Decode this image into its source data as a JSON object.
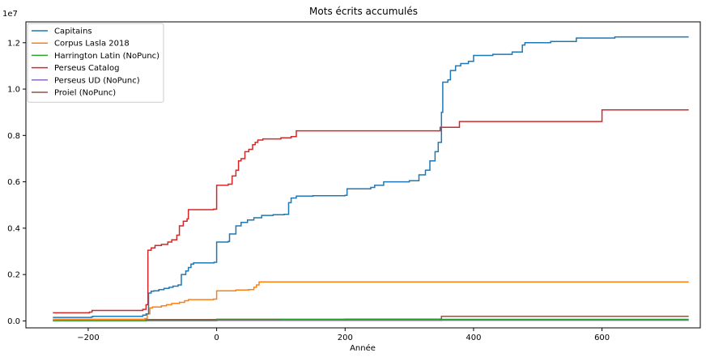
{
  "chart_data": {
    "type": "line",
    "step": true,
    "title": "Mots écrits accumulés",
    "xlabel": "Année",
    "ylabel": "",
    "y_offset_label": "1e7",
    "xlim": [
      -297,
      753
    ],
    "ylim": [
      -300000,
      12900000
    ],
    "x_ticks": [
      -200,
      0,
      200,
      400,
      600
    ],
    "x_tick_labels": [
      "−200",
      "0",
      "200",
      "400",
      "600"
    ],
    "y_ticks": [
      0,
      2000000,
      4000000,
      6000000,
      8000000,
      10000000,
      12000000
    ],
    "y_tick_labels": [
      "0.0",
      "0.2",
      "0.4",
      "0.6",
      "0.8",
      "1.0",
      "1.2"
    ],
    "legend_position": "top-left",
    "series": [
      {
        "name": "Capitains",
        "color": "#1f77b4",
        "points": [
          [
            -255,
            150000
          ],
          [
            -195,
            170000
          ],
          [
            -193,
            200000
          ],
          [
            -115,
            250000
          ],
          [
            -110,
            300000
          ],
          [
            -106,
            1200000
          ],
          [
            -102,
            1280000
          ],
          [
            -98,
            1300000
          ],
          [
            -90,
            1350000
          ],
          [
            -82,
            1400000
          ],
          [
            -74,
            1450000
          ],
          [
            -68,
            1500000
          ],
          [
            -60,
            1550000
          ],
          [
            -55,
            2000000
          ],
          [
            -48,
            2150000
          ],
          [
            -44,
            2300000
          ],
          [
            -40,
            2450000
          ],
          [
            -36,
            2500000
          ],
          [
            -4,
            2530000
          ],
          [
            0,
            3400000
          ],
          [
            18,
            3430000
          ],
          [
            20,
            3750000
          ],
          [
            30,
            4100000
          ],
          [
            38,
            4250000
          ],
          [
            48,
            4350000
          ],
          [
            58,
            4450000
          ],
          [
            70,
            4550000
          ],
          [
            88,
            4580000
          ],
          [
            105,
            4600000
          ],
          [
            112,
            5100000
          ],
          [
            116,
            5300000
          ],
          [
            124,
            5380000
          ],
          [
            150,
            5400000
          ],
          [
            200,
            5420000
          ],
          [
            203,
            5700000
          ],
          [
            240,
            5760000
          ],
          [
            246,
            5850000
          ],
          [
            260,
            6000000
          ],
          [
            300,
            6050000
          ],
          [
            315,
            6300000
          ],
          [
            325,
            6500000
          ],
          [
            332,
            6900000
          ],
          [
            340,
            7300000
          ],
          [
            345,
            7700000
          ],
          [
            350,
            9000000
          ],
          [
            352,
            10300000
          ],
          [
            360,
            10400000
          ],
          [
            364,
            10800000
          ],
          [
            372,
            11000000
          ],
          [
            380,
            11100000
          ],
          [
            392,
            11200000
          ],
          [
            400,
            11450000
          ],
          [
            430,
            11500000
          ],
          [
            460,
            11600000
          ],
          [
            476,
            11900000
          ],
          [
            480,
            12000000
          ],
          [
            520,
            12050000
          ],
          [
            560,
            12200000
          ],
          [
            620,
            12250000
          ],
          [
            735,
            12250000
          ]
        ]
      },
      {
        "name": "Corpus Lasla 2018",
        "color": "#ff7f0e",
        "points": [
          [
            -255,
            70000
          ],
          [
            -112,
            100000
          ],
          [
            -108,
            300000
          ],
          [
            -104,
            560000
          ],
          [
            -100,
            600000
          ],
          [
            -86,
            650000
          ],
          [
            -78,
            700000
          ],
          [
            -70,
            750000
          ],
          [
            -58,
            800000
          ],
          [
            -50,
            870000
          ],
          [
            -44,
            920000
          ],
          [
            -5,
            940000
          ],
          [
            0,
            1300000
          ],
          [
            30,
            1330000
          ],
          [
            50,
            1350000
          ],
          [
            58,
            1450000
          ],
          [
            62,
            1550000
          ],
          [
            66,
            1680000
          ],
          [
            735,
            1680000
          ]
        ]
      },
      {
        "name": "Harrington Latin (NoPunc)",
        "color": "#2ca02c",
        "points": [
          [
            -255,
            10000
          ],
          [
            -110,
            30000
          ],
          [
            0,
            45000
          ],
          [
            100,
            55000
          ],
          [
            350,
            65000
          ],
          [
            735,
            65000
          ]
        ]
      },
      {
        "name": "Perseus Catalog",
        "color": "#d62728",
        "points": [
          [
            -255,
            350000
          ],
          [
            -198,
            380000
          ],
          [
            -194,
            450000
          ],
          [
            -115,
            500000
          ],
          [
            -110,
            700000
          ],
          [
            -107,
            3050000
          ],
          [
            -102,
            3150000
          ],
          [
            -96,
            3250000
          ],
          [
            -86,
            3300000
          ],
          [
            -76,
            3400000
          ],
          [
            -70,
            3500000
          ],
          [
            -62,
            3700000
          ],
          [
            -58,
            4100000
          ],
          [
            -52,
            4300000
          ],
          [
            -46,
            4400000
          ],
          [
            -44,
            4800000
          ],
          [
            -5,
            4820000
          ],
          [
            0,
            5850000
          ],
          [
            18,
            5900000
          ],
          [
            24,
            6250000
          ],
          [
            30,
            6500000
          ],
          [
            34,
            6900000
          ],
          [
            38,
            7000000
          ],
          [
            44,
            7300000
          ],
          [
            50,
            7400000
          ],
          [
            56,
            7600000
          ],
          [
            60,
            7700000
          ],
          [
            64,
            7800000
          ],
          [
            72,
            7850000
          ],
          [
            100,
            7900000
          ],
          [
            116,
            7950000
          ],
          [
            124,
            8200000
          ],
          [
            300,
            8200000
          ],
          [
            348,
            8350000
          ],
          [
            378,
            8600000
          ],
          [
            600,
            9100000
          ],
          [
            735,
            9100000
          ]
        ]
      },
      {
        "name": "Perseus UD (NoPunc)",
        "color": "#9467bd",
        "points": [
          [
            -255,
            5000
          ],
          [
            -110,
            10000
          ],
          [
            0,
            20000
          ],
          [
            350,
            30000
          ],
          [
            735,
            30000
          ]
        ]
      },
      {
        "name": "Proiel (NoPunc)",
        "color": "#8c564b",
        "points": [
          [
            -255,
            10000
          ],
          [
            -110,
            60000
          ],
          [
            0,
            70000
          ],
          [
            200,
            75000
          ],
          [
            348,
            80000
          ],
          [
            350,
            200000
          ],
          [
            735,
            200000
          ]
        ]
      }
    ]
  }
}
